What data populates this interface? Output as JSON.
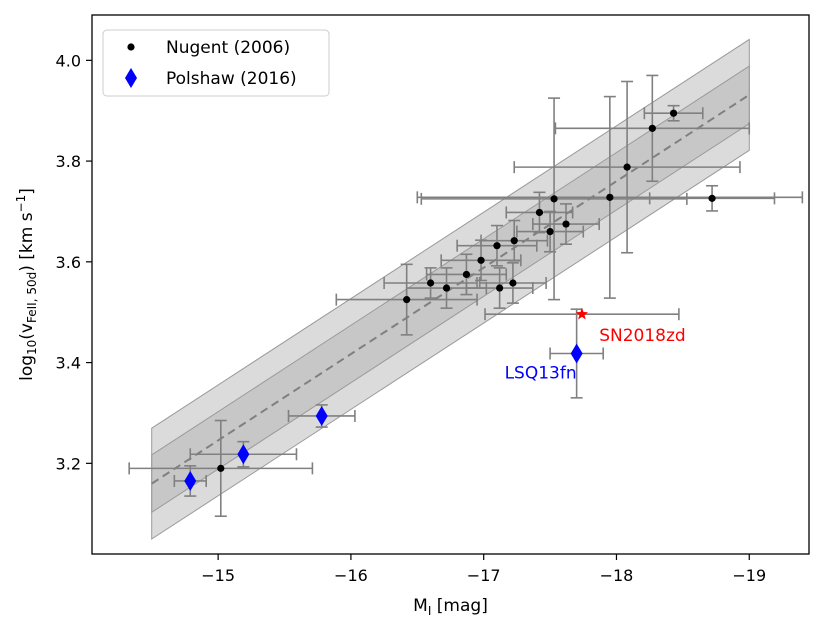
{
  "chart_data": {
    "type": "scatter",
    "xlabel": "M",
    "xlabel_sub": "I",
    "xlabel_unit": " [mag]",
    "ylabel_pre": "log",
    "ylabel_sub1": "10",
    "ylabel_v": "(v",
    "ylabel_sub2": "FeII, 50d",
    "ylabel_post": ") [km s",
    "ylabel_sup": "−1",
    "ylabel_end": "]",
    "xlim": [
      -14.05,
      -19.45
    ],
    "ylim": [
      3.02,
      4.09
    ],
    "xticks": [
      -15,
      -16,
      -17,
      -18,
      -19
    ],
    "xtick_labels": [
      "−15",
      "−16",
      "−17",
      "−18",
      "−19"
    ],
    "yticks": [
      3.2,
      3.4,
      3.6,
      3.8,
      4.0
    ],
    "ytick_labels": [
      "3.2",
      "3.4",
      "3.6",
      "3.8",
      "4.0"
    ],
    "fit": {
      "slope": -0.1715,
      "intercept": 0.673,
      "x_range": [
        -14.5,
        -19.0
      ],
      "inner_band": 0.057,
      "outer_band": 0.11
    },
    "legend": [
      {
        "label": "Nugent (2006)",
        "marker": "dot",
        "color": "#000000"
      },
      {
        "label": "Polshaw (2016)",
        "marker": "diamond",
        "color": "#0000ff"
      }
    ],
    "series": [
      {
        "name": "Nugent (2006)",
        "color": "#000000",
        "points": [
          {
            "x": -15.02,
            "y": 3.19,
            "xerr": 0.69,
            "yerr": 0.095
          },
          {
            "x": -16.42,
            "y": 3.525,
            "xerr": 0.53,
            "yerr": 0.07
          },
          {
            "x": -16.6,
            "y": 3.558,
            "xerr": 0.35,
            "yerr": 0.03
          },
          {
            "x": -16.72,
            "y": 3.548,
            "xerr": 0.3,
            "yerr": 0.04
          },
          {
            "x": -16.87,
            "y": 3.575,
            "xerr": 0.3,
            "yerr": 0.04
          },
          {
            "x": -16.98,
            "y": 3.603,
            "xerr": 0.3,
            "yerr": 0.04
          },
          {
            "x": -17.1,
            "y": 3.632,
            "xerr": 0.3,
            "yerr": 0.04
          },
          {
            "x": -17.12,
            "y": 3.548,
            "xerr": 0.25,
            "yerr": 0.04
          },
          {
            "x": -17.22,
            "y": 3.558,
            "xerr": 0.25,
            "yerr": 0.04
          },
          {
            "x": -17.23,
            "y": 3.642,
            "xerr": 0.25,
            "yerr": 0.04
          },
          {
            "x": -17.42,
            "y": 3.698,
            "xerr": 0.25,
            "yerr": 0.04
          },
          {
            "x": -17.5,
            "y": 3.66,
            "xerr": 0.25,
            "yerr": 0.04
          },
          {
            "x": -17.53,
            "y": 3.725,
            "xerr": 1.0,
            "yerr": 0.2
          },
          {
            "x": -17.62,
            "y": 3.675,
            "xerr": 0.25,
            "yerr": 0.04
          },
          {
            "x": -17.95,
            "y": 3.728,
            "xerr": 1.45,
            "yerr": 0.2
          },
          {
            "x": -18.08,
            "y": 3.788,
            "xerr": 0.85,
            "yerr": 0.17
          },
          {
            "x": -18.27,
            "y": 3.865,
            "xerr": 0.73,
            "yerr": 0.105
          },
          {
            "x": -18.43,
            "y": 3.895,
            "xerr": 0.22,
            "yerr": 0.015
          },
          {
            "x": -18.72,
            "y": 3.726,
            "xerr": 0.47,
            "yerr": 0.025
          }
        ]
      },
      {
        "name": "Polshaw (2016)",
        "color": "#0000ff",
        "points": [
          {
            "x": -14.79,
            "y": 3.165,
            "xerr": 0.12,
            "yerr": 0.03
          },
          {
            "x": -15.19,
            "y": 3.218,
            "xerr": 0.4,
            "yerr": 0.025
          },
          {
            "x": -15.78,
            "y": 3.294,
            "xerr": 0.25,
            "yerr": 0.022
          }
        ]
      },
      {
        "name": "LSQ13fn",
        "color": "#0000ff",
        "points": [
          {
            "x": -17.7,
            "y": 3.418,
            "xerr": 0.2,
            "yerr": 0.088
          }
        ]
      },
      {
        "name": "SN2018zd",
        "color": "#ff0000",
        "points": [
          {
            "x": -17.74,
            "y": 3.496,
            "xerr": 0.73,
            "yerr": 0.0
          }
        ]
      }
    ],
    "annotations": [
      {
        "text": "LSQ13fn",
        "x": -17.7,
        "y": 3.38,
        "color": "#0000ff",
        "anchor": "end"
      },
      {
        "text": "SN2018zd",
        "x": -17.87,
        "y": 3.455,
        "color": "#ff0000",
        "anchor": "start"
      }
    ]
  }
}
